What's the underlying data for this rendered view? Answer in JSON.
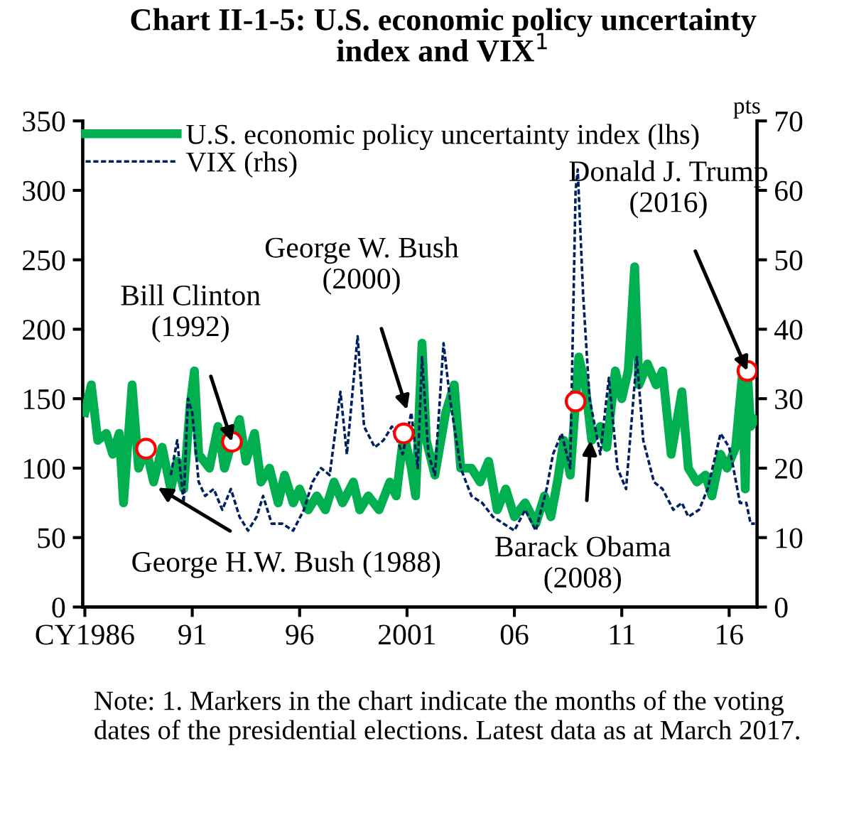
{
  "chart_data": {
    "type": "line",
    "title": "Chart II-1-5: U.S. economic policy uncertainty\nindex and VIX$^{1}$",
    "xlim": [
      1985.9,
      2017.3
    ],
    "xticks": [
      {
        "value": 1986,
        "label": "CY1986"
      },
      {
        "value": 1991,
        "label": "91"
      },
      {
        "value": 1996,
        "label": "96"
      },
      {
        "value": 2001,
        "label": "2001"
      },
      {
        "value": 2006,
        "label": "06"
      },
      {
        "value": 2011,
        "label": "11"
      },
      {
        "value": 2016,
        "label": "16"
      }
    ],
    "ylim": [
      0,
      350
    ],
    "yticks": [
      0,
      50,
      100,
      150,
      200,
      250,
      300,
      350
    ],
    "y2lim": [
      0,
      70
    ],
    "y2ticks": [
      0,
      10,
      20,
      30,
      40,
      50,
      60,
      70
    ],
    "y2label": "pts",
    "legend": "top left",
    "grid": false,
    "series": [
      {
        "name": "U.S. economic policy uncertainty index (lhs)",
        "color": "#00b050",
        "line_style": "solid",
        "x": [
          1986.0,
          1986.3,
          1986.6,
          1987.0,
          1987.3,
          1987.6,
          1987.8,
          1988.2,
          1988.5,
          1988.85,
          1989.2,
          1989.6,
          1990.0,
          1990.3,
          1990.6,
          1990.9,
          1991.1,
          1991.3,
          1991.8,
          1992.2,
          1992.5,
          1992.85,
          1993.2,
          1993.5,
          1993.9,
          1994.2,
          1994.6,
          1995.0,
          1995.3,
          1995.7,
          1996.0,
          1996.4,
          1996.8,
          1997.2,
          1997.6,
          1998.0,
          1998.5,
          1998.8,
          1999.2,
          1999.7,
          2000.2,
          2000.5,
          2000.85,
          2001.2,
          2001.4,
          2001.7,
          2001.9,
          2002.3,
          2002.8,
          2003.2,
          2003.5,
          2004.0,
          2004.4,
          2004.8,
          2005.2,
          2005.6,
          2006.0,
          2006.5,
          2007.0,
          2007.4,
          2007.7,
          2008.0,
          2008.3,
          2008.6,
          2008.85,
          2009.0,
          2009.3,
          2009.6,
          2010.0,
          2010.3,
          2010.7,
          2011.0,
          2011.3,
          2011.6,
          2011.8,
          2012.2,
          2012.6,
          2012.9,
          2013.3,
          2013.8,
          2014.1,
          2014.5,
          2014.9,
          2015.2,
          2015.6,
          2015.9,
          2016.3,
          2016.6,
          2016.75,
          2016.85,
          2017.0,
          2017.2
        ],
        "values": [
          140,
          160,
          120,
          125,
          110,
          125,
          75,
          160,
          100,
          114,
          90,
          115,
          85,
          105,
          85,
          145,
          170,
          110,
          100,
          130,
          100,
          119,
          135,
          105,
          125,
          90,
          100,
          75,
          95,
          75,
          85,
          70,
          80,
          70,
          90,
          75,
          90,
          70,
          80,
          70,
          90,
          80,
          125,
          100,
          80,
          190,
          120,
          95,
          140,
          160,
          100,
          100,
          90,
          105,
          70,
          85,
          65,
          75,
          60,
          80,
          65,
          90,
          120,
          95,
          148,
          180,
          160,
          120,
          130,
          115,
          170,
          150,
          170,
          245,
          160,
          175,
          160,
          170,
          110,
          155,
          100,
          90,
          95,
          80,
          110,
          100,
          115,
          165,
          85,
          170,
          130,
          135
        ]
      },
      {
        "name": "VIX (rhs)",
        "axis": "y2",
        "color": "#002060",
        "line_style": "dashed",
        "x": [
          1990.0,
          1990.3,
          1990.6,
          1990.8,
          1991.0,
          1991.3,
          1991.6,
          1992.0,
          1992.4,
          1992.8,
          1993.2,
          1993.6,
          1994.0,
          1994.3,
          1994.7,
          1995.2,
          1995.7,
          1996.2,
          1996.6,
          1997.0,
          1997.4,
          1997.9,
          1998.2,
          1998.7,
          1999.0,
          1999.5,
          1999.9,
          2000.3,
          2000.8,
          2001.0,
          2001.2,
          2001.5,
          2001.7,
          2002.0,
          2002.3,
          2002.7,
          2003.0,
          2003.5,
          2004.0,
          2004.5,
          2005.0,
          2005.5,
          2006.0,
          2006.5,
          2007.0,
          2007.5,
          2007.8,
          2008.2,
          2008.6,
          2008.85,
          2008.95,
          2009.2,
          2009.5,
          2010.0,
          2010.4,
          2010.8,
          2011.2,
          2011.7,
          2012.0,
          2012.5,
          2012.9,
          2013.4,
          2013.8,
          2014.1,
          2014.6,
          2015.0,
          2015.6,
          2016.0,
          2016.2,
          2016.5,
          2016.8,
          2017.0,
          2017.2
        ],
        "values": [
          19,
          24,
          15,
          30,
          28,
          18,
          16,
          17,
          14,
          17,
          13,
          11,
          13,
          16,
          12,
          12,
          11,
          14,
          18,
          20,
          19,
          31,
          22,
          39,
          26,
          23,
          24,
          26,
          22,
          25,
          28,
          20,
          36,
          22,
          19,
          38,
          30,
          20,
          16,
          15,
          13,
          12,
          11,
          14,
          11,
          17,
          22,
          25,
          20,
          60,
          63,
          45,
          30,
          22,
          33,
          20,
          17,
          36,
          24,
          18,
          17,
          14,
          15,
          13,
          14,
          17,
          25,
          23,
          20,
          15,
          15,
          12,
          12
        ]
      },
      {
        "type": "scatter",
        "color": "#ff0000",
        "marker": "circle",
        "x": [
          1988.85,
          1992.85,
          2000.85,
          2008.85,
          2016.85
        ],
        "values": [
          114,
          119,
          125,
          148,
          170
        ]
      }
    ],
    "annotations": [
      {
        "text": "George H.W. Bush (1988)",
        "x": 1989.4,
        "y": 86
      },
      {
        "text": "Bill Clinton\n(1992)",
        "x": 1992.85,
        "y": 119
      },
      {
        "text": "George W. Bush\n(2000)",
        "x": 2001.0,
        "y": 142
      },
      {
        "text": "Barack Obama\n(2008)",
        "x": 2009.55,
        "y": 120
      },
      {
        "text": "Donald J. Trump\n(2016)",
        "x": 2016.85,
        "y": 170
      },
      "Note: 1. Markers in the chart indicate the months of the voting dates of the presidential elections. Latest data as at March 2017."
    ]
  }
}
